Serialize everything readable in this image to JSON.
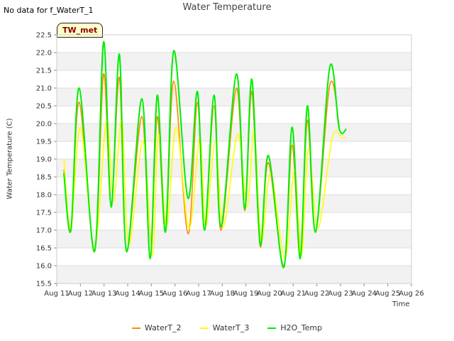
{
  "nodata_text": "No data for f_WaterT_1",
  "badge_text": "TW_met",
  "chart_data": {
    "type": "line",
    "title": "Water Temperature",
    "xlabel": "Time",
    "ylabel": "Water Temperature (C)",
    "ylim": [
      15.5,
      22.5
    ],
    "xlim": [
      11,
      26
    ],
    "yticks": [
      15.5,
      16.0,
      16.5,
      17.0,
      17.5,
      18.0,
      18.5,
      19.0,
      19.5,
      20.0,
      20.5,
      21.0,
      21.5,
      22.0,
      22.5
    ],
    "xticks": [
      {
        "value": 11,
        "label": "Aug 11"
      },
      {
        "value": 12,
        "label": "Aug 12"
      },
      {
        "value": 13,
        "label": "Aug 13"
      },
      {
        "value": 14,
        "label": "Aug 14"
      },
      {
        "value": 15,
        "label": "Aug 15"
      },
      {
        "value": 16,
        "label": "Aug 16"
      },
      {
        "value": 17,
        "label": "Aug 17"
      },
      {
        "value": 18,
        "label": "Aug 18"
      },
      {
        "value": 19,
        "label": "Aug 19"
      },
      {
        "value": 20,
        "label": "Aug 20"
      },
      {
        "value": 21,
        "label": "Aug 21"
      },
      {
        "value": 22,
        "label": "Aug 22"
      },
      {
        "value": 23,
        "label": "Aug 23"
      },
      {
        "value": 24,
        "label": "Aug 24"
      },
      {
        "value": 25,
        "label": "Aug 25"
      },
      {
        "value": 26,
        "label": "Aug 26"
      }
    ],
    "grid": true,
    "legend_position": "bottom",
    "series": [
      {
        "name": "WaterT_2",
        "color": "#ff8c00",
        "x": [
          11.3,
          11.6,
          11.95,
          12.6,
          12.98,
          13.3,
          13.65,
          13.95,
          14.6,
          14.95,
          15.25,
          15.6,
          15.95,
          16.55,
          16.95,
          17.25,
          17.65,
          17.95,
          18.6,
          18.95,
          19.25,
          19.6,
          19.95,
          20.6,
          20.95,
          21.3,
          21.6,
          21.95,
          22.55,
          22.95,
          23.3,
          23.6,
          23.95,
          24.55,
          24.95,
          25.25
        ],
        "y": [
          18.7,
          17.0,
          20.6,
          16.4,
          21.4,
          17.7,
          21.3,
          16.4,
          20.2,
          16.2,
          20.2,
          16.95,
          21.2,
          16.9,
          20.6,
          17.0,
          20.5,
          17.0,
          21.0,
          17.55,
          20.9,
          16.55,
          18.9,
          16.0,
          19.4,
          16.2,
          20.1,
          16.95,
          21.1,
          19.9,
          null,
          null,
          null,
          null,
          null,
          null
        ]
      },
      {
        "name": "WaterT_3",
        "color": "#ffff00",
        "x": [
          11.3,
          11.6,
          12.0,
          12.6,
          13.1,
          13.4,
          13.75,
          14.05,
          14.65,
          15.05,
          15.3,
          15.65,
          16.05,
          16.6,
          17.05,
          17.3,
          17.7,
          18.05,
          18.65,
          19.05,
          19.35,
          19.65,
          20.05,
          20.65,
          21.05,
          21.35,
          21.65,
          22.05,
          22.65,
          23.05,
          23.25
        ],
        "y": [
          19.0,
          17.05,
          19.9,
          16.5,
          20.1,
          17.8,
          20.1,
          16.6,
          19.5,
          16.3,
          19.7,
          17.1,
          19.9,
          17.05,
          19.6,
          17.1,
          19.5,
          17.1,
          19.7,
          17.65,
          19.8,
          16.7,
          18.6,
          16.2,
          18.7,
          16.3,
          19.3,
          17.05,
          19.6,
          19.6,
          19.6
        ]
      },
      {
        "name": "H2O_Temp",
        "color": "#00ee00",
        "x": [
          11.3,
          11.6,
          11.95,
          12.6,
          12.98,
          13.3,
          13.65,
          13.95,
          14.6,
          14.95,
          15.25,
          15.6,
          15.95,
          16.55,
          16.95,
          17.25,
          17.65,
          17.95,
          18.6,
          18.95,
          19.25,
          19.6,
          19.95,
          20.6,
          20.95,
          21.3,
          21.6,
          21.95,
          22.55,
          22.95,
          23.25
        ],
        "y": [
          18.6,
          17.0,
          21.0,
          16.4,
          22.3,
          17.65,
          21.95,
          16.4,
          20.7,
          16.2,
          20.8,
          16.95,
          22.05,
          17.9,
          20.9,
          17.0,
          20.8,
          17.1,
          21.4,
          17.6,
          21.25,
          16.6,
          19.1,
          15.95,
          19.9,
          16.2,
          20.5,
          16.95,
          21.6,
          19.85,
          19.85
        ]
      }
    ]
  }
}
